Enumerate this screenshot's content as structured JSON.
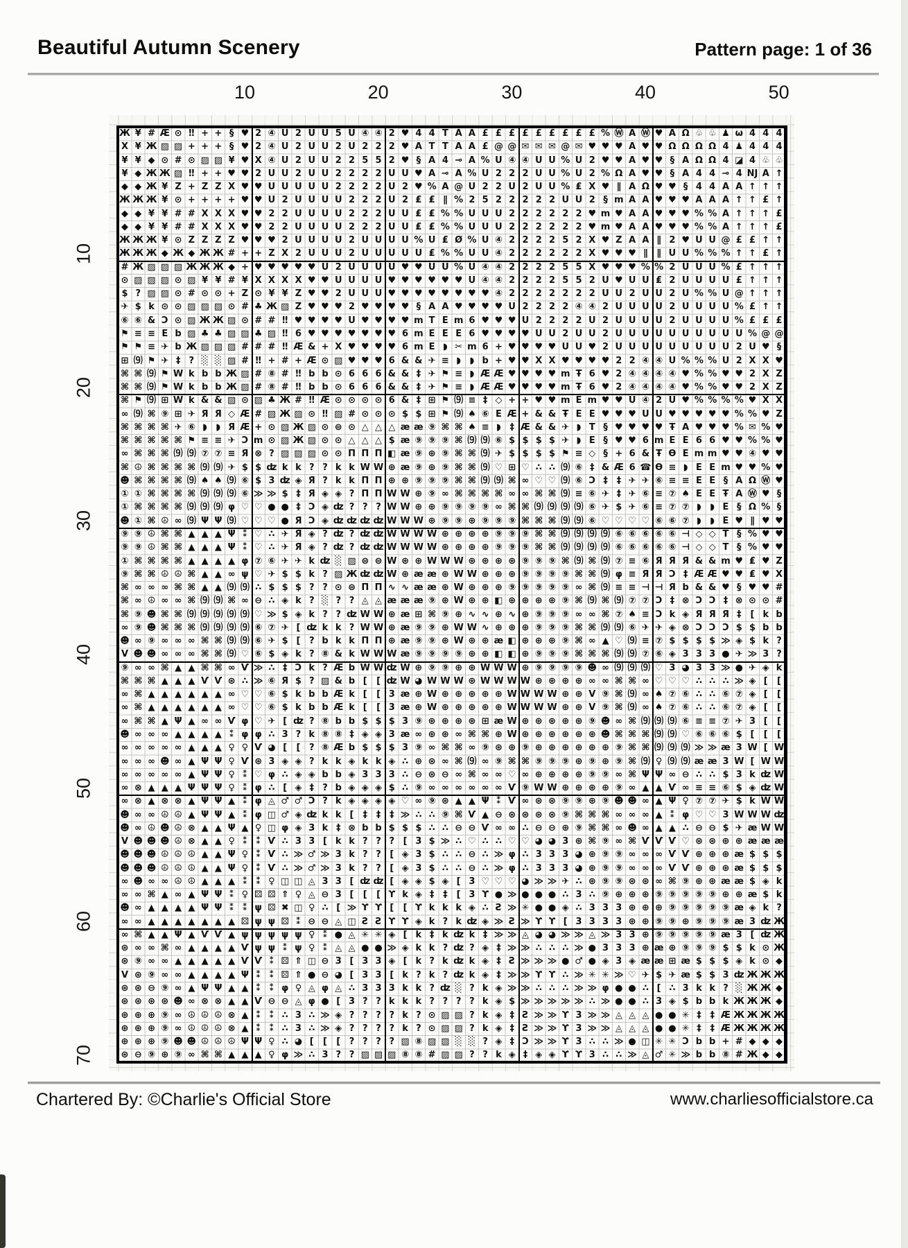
{
  "header": {
    "title": "Beautiful Autumn Scenery",
    "page_label": "Pattern page: 1 of 36"
  },
  "footer": {
    "chartered_by": "Chartered By: ©Charlie's Official Store",
    "website": "www.charliesofficialstore.ca"
  },
  "axes": {
    "column_labels": [
      10,
      20,
      30,
      40,
      50
    ],
    "row_labels": [
      10,
      20,
      30,
      40,
      50,
      60,
      70
    ]
  },
  "grid": {
    "columns": 50,
    "rows": 70,
    "rows_data": [
      "Ж¥#Æ⊙‼++§♥2④U2UU5U④④2♥44TAA£££££££££%ⓌAⓌ♥AΩ♧♧♟ω444",
      "X¥Ж▨▨+++§♥2④U2UU2U222♥ATTAA£@@✉✉✉@✉♥♥♥A♥♥ΩΩΩΩ4♟444",
      "¥¥◆⊙#⊙▨▨¥♥X④U2UU22552♥§A4⊸A%U④④UU%U2♥♥A♥♥§AΩΩ4◪4♧♧",
      "¥◆ЖЖ▨‼++♥♥2UU2UU2222UU♥A⊸A%U222UU%U2%ΩA♥♥§A44⊸4ǊA↑",
      "◆◆Ж¥Z+ZZX♥♥UUUUU2222U2♥%A@U22U2UU%₤X♥∥AΩ♥♥§44AA↑↑↑",
      "ЖЖЖ¥⊙++++♥♥U2UUUU222U2₤₤∥%2522222UU2§mAA♥♥♥AAA↑↑£↑",
      "◆◆¥¥##XXX♥♥22UUUU222UU₤₤%%UUU222222♥m♥AA♥♥♥%%A↑↑↑£",
      "◆◆¥¥##XXX♥♥22UUUU222UU₤₤%%UUU222222♥m♥AA♥♥♥%%A↑↑↑£",
      "ЖЖЖ¥⊙ZZZZ♥♥♥2UUUU2UUUU%U₤Ø%U④222252X♥ZAA∥2♥UU@££↑↑",
      "ЖЖЖ◆Ж◆ЖЖ#++ZX2UUU2UUUUU₤%%UU④222222X♥♥♥∥∥UU%%%↑↑£↑",
      "#Ж▨▨▨ЖЖЖ◆+♥♥♥♥♥U2UUUU♥♥UU%U④④222255X♥♥♥%%2UUU%£↑↑↑",
      "⊙▨▨▨⊙▨¥¥#¥XXXX♥♥UUUU♥♥♥♥♥♥U④④2222552U♥UU₤2UUUU£↑↑↑",
      "$?▨▨⊙#⊙⊙+Z⊙¥¥Z♥♥2UUU♥♥♥♥♥♥♥♥④2222222UU2UU2U%%U@↑↑↑",
      "✈$k⊙⊙▨▨▨⊙#♣Ж▨Z♥♥♥2♥♥♥♥§AA♥♥♥♥U2222④④2UUUU2UUUU%£↑↑",
      "⑥⑥&Ɔ⊙▨ЖЖ▨⊙##‼♥♥♥♥U♥♥♥♥mTEm6♥♥♥U2222U2UUUU2UUUU%£££",
      "⚑≡≡Eb▨♣♣▨▨♣▨‼6♥♥♥♥♥♥♥6mEEE6♥♥♥♥UU2UU2UUUUUUUUUU%@@",
      "⚑⚑≡✈bЖ▨▨▨###‼Æ&+X♥♥♥♥6mE◗✂m6+♥♥♥♥UU♥2UUUUUUUUU2U♥§",
      "⊞⑼⚑✈‡?░░▨#‼+#+Æ⊙▨♥♥♥6&&✈≡◗◗b+♥♥XX♥♥♥♥22④④U%%%U2XX♥",
      "⌘⌘⑼⚑WkbbЖ▨#⑧#‼bb⊙666&&‡✈⚑≡◗ÆÆ♥♥♥♥mŦ6♥2④④④④♥%%♥♥2XZ",
      "⌘⌘⑼⚑WkbbЖ▨#⑧#‼bb⊙666&&‡✈⚑≡◗ÆÆ♥♥♥♥mŦ6♥2④④④④♥%%♥♥2XZ",
      "⌘⚑⑼⊞Wk&&▨⊙▨♣Ж#‼Æ⊙⊙⊙⊙6&‡⊞⚑⑼≡‡◇++♥♥mEm♥♥U④2U♥%%%%♥XX",
      "∞⑼⌘⑨⊞✈ЯЯ◇Æ#▨Ж▨⊙‼▨#⊙⊙⊙$$⊞⚑⑼♠⑥EÆ+&&ŦEE♥♥♥UU♥♥♥♥♥%%♥Z",
      "⌘⌘⌘⌘✈⑥◗◗ЯÆ+⊙▨Ж▨⊙⊜⊙△△△ææ⑨⌘⌘♠≡◗‡Æ&&✈◗T§♥♥♥♥ŦA♥♥♥%✉%♥",
      "⌘⌘⌘⌘⌘⚑≡≡✈Ɔm⊙▨Ж▨⊙⊙△△△$æ⑨⑨⑨⌘⑼⑼⑥$$$$✈◗E§♥♥6mEE66♥♥%%♥",
      "∞⌘⌘⌘⑼⑼⑦⑦≡Я⊗?▨▨▨⊙⊙ΠΠΠ◧æ⑨⊕⑨⌘⌘⑼✈$$$$⚑≡◇§+6&ŦƟEmm♥♥④♥♥",
      "⌘☮⌘⌘⌘⌘⑼⑼✈$$ʣkk??kkWW⊕æ⑨⊕⑨⌘⌘⑼♡⊞♡∴∴⑼⑥‡&Æ6☎Ɵ≡◗EEm♥♥%♥",
      "☻⌘⌘⌘⌘⑼♠♠⑼⑥$3ʣ◈Я?kkΠΠ⊕⊕⑨⑨⑨⌘⌘⑼⑼⌘∞♡♡⑼⑥Ɔ‡‡✈✈⑥≡≡EE§AΩⓌ♥",
      "①①⌘⌘⌘⌘⑼⑼⑼⑥≫≫$‡Я◈◈?ΠΠWW⊕⑨∞⌘⌘⌘⌘∞∞⌘⌘⑼≡⑥✈‡✈⑥≡⑦♠EEŦAⓌ♥§",
      "①⌘⌘⌘⌘⑼⑼⑼φ♡♡●●‡Ɔ◈ʣ???WW⊕⊕⑨⑨⑨⑨∞⌘⌘⑼⑼⑼⑼⑥✈$✈⑥≡⑦⑦◗◗E§Ω%§",
      "☻①⌘☮∞⑼ΨΨ⑼♡♡♡●ЯƆ◈ʣʣʣʣWWW⊕⑨⑨⊕⑨⑨⑨⌘⌘⌘⑼⑼⑥♡♡♡♡⑥⑥⑦◗◗E♥∥♥♥",
      "⑨⑨☮⌘⌘▲▲▲Ψ⁑♡∴✈Я◈?ʣ?ʣʣWWWW⊕⊕⊕⊕⑨⑨⑨⌘⌘⑼⑼⑼⑼⑥⑥⑥⑥⑥⊣◇◇T§%♥♥",
      "⑨⑨☮⌘⌘▲▲▲Ψ⁑♡∴✈Я◈?ʣ?ʣʣWWWW⊕⊕⊕⊕⑨⑨⑨⌘⌘⑼⑼⑼⑼⑥⑥⑥⑥⑥⊣◇◇T§%♥♥",
      "①⌘⌘⌘⌘▲▲▲▲φ⑦⑥✈✈kʣ░▨⊜⊜W⊕⊕WWW⊕⊕⊕⊕⑨⑨⑨⌘⑼⌘⑼⑦≡⑥ЯЯЯ&&m♥₤♥Z",
      "⑨⌘⌘☮☮⌘▲▲∞ψ♡✈$$k?▨ЖʣʣW⊕ææ⊕WW⊕⊕⊕⑨⑨⑨⑨⌘⌘⑼φ≡ЯЯƆ‡ÆÆ♥♥₤♥X",
      "⌘∞∞∞⌘⌘▲▲⑼⑼∴$$$??⊙⊜ΠΠ∿∿ææ⊕W⊕⊕⊕⑨⑨⑨⑨⑨∞⌘⑼≡≡⊣⊣Яb&&♥§♥♥#",
      "⌘∞☮∞∞⌘⑼⑼⌘∞⊖∴◈k?░??◬◬æææ⑨⊕W⊕⊕◧⊕⊕⊕⊕⑨⌘⑼⌘⑼⑦⑦Ɔ‡⊗ƆƆ‡⊗⊙⊙#",
      "⌘⑨☻⌘⌘⑼⑼⑼⑼⑼♡≫$◈k??ʣWW⊕æ⊞⌘⑨⊕∿∿⊕∿⊕⑨⑨⑨∞∞⌘⑦♠≡Ɔk◈ЯЯЯ‡[kb",
      "∞⑨☻⌘⌘⌘⑼⑼⑼⑼⑥⑦✈[ʣkk?WW⊕æ⑨⑨⊕WW∿⊕⊕⊕⑨⑨⑨⌘⌘⑼⑼⑥✈✈◈⊗ƆƆƆ$$bb",
      "☻∞⑨∞∞∞⌘⌘⑼⑼⑥✈$[?bkkΠΠ⊕æ⑨⑨⊕W⊕⊕æ◧⊕⊕⊕⑨⌘∞▲♡⑼≡⑦$$$$≫◈$k?",
      "V☻☻∞∞∞⌘⌘⑼♡⑥$◈k?⑧&kWWWæ⑨⑨⑨⑨⊕⊕◧◧⊕⑨⑨⑨⌘⌘⌘⑼⑼⑦⑥◈333●✈≫3?",
      "⑨∞∞⌘▲▲⌘⌘∞Ѵ≫∴‡Ɔk?ÆbWWʣW⊕⑨⑨⊕⊕WWW⊕⑨⑨⑨⑨☻∞⑼⑼⑼♡3◕33≫●✈◈k",
      "⌘⌘⌘▲▲▲ѴѴ⊛∴≫⑥Я$?▨&b[[ʣW◕WWW⊕WWWW⊕⊕⊕⊕∞∞⌘⌘∞♡♡♡∴∴∴≫◈[[",
      "∞⌘▲▲▲▲▲▲∞♡♡⑥$kbbÆk[[3æ⊕W⊕⊕⊕⊕⊕WWWW⊕⊕V⑨⌘⑼∞♠⑦⑥∴∴⑥⑦◈[[",
      "∞⌘▲▲▲▲▲▲∞♡♡⑥$kbbÆk[[3æ⊕W⊕⊕⊕⊕⊕WWWW⊕⊕V⑨⌘⑼∞♠⑦⑥∴∴⑥⑦◈[[",
      "∞⌘⌘▲Ψ▲∞∞Ѵφ♡✈[ʣ?⑧bb$$$3⑨⊕⊕⊕⊕⊞æW⊕⊕⊕⊕⊕⑨☻∞⌘⑼⑼⑼⑥≡≡⑦✈3[[",
      "☻∞∞∞▲▲▲▲⁑φφ∴3?k⑧⑧‡◈◈3æ∞⊕⊕∞⌘⌘⊕W⊕⊕⊕⊕⊕⊕☻⌘⌘⌘⑼⑼♡⑥⑥⑥$[[[",
      "∞∞∞∞∞▲▲▲♀♀Ѵ◕[[?⑧Æb$$$3⑨∞⌘⌘∞⑨⊛⊕⑨⊕⊕⊕⊕⊕⊕⑨⌘⌘⑼⑼⑼≫≫æ3W[W",
      "∞∞∞☻∞▲ΨΨ♀Ѵ⊛3◈◈?kk◈kk◈∴⊕⊛∞⌘⑼∞⑨⌘⌘⑨⑨⑨⊕⑨⊕⑨⌘⑼♀⑼⑼ææ3W[WW",
      "∞∞∞∞∞▲ΨΨ♀⁑♡φ∴◈◈bb◈333∴⊖⊛⊖∞⌘∞∞♡∞⊕⊕⊕⊕⑨⑨∞⌘ΨΨ∞⊖∴∴$3kʣW",
      "∞⊗▲▲▲ΨΨΨ♀⁑φ∴[◈‡?b◈◈◈$∴⑨∞∞∞∞∞∞Ѵ⑨WW⊕⊕⊕⊕⑨∞▲▲Ѵ∞≡≡⑥$◈ʣW",
      "∞⊗▲⊗⊗▲ΨΨ▲⁑φ◬♂♂Ɔ?k◈◈◈◈♡∞⑨⊛▲▲Ψ⁑Ѵ∞⊛⊛⑨⑨⊕⑨☻☻∞▲Ψ♀⑦⑦✈$kWW",
      "☻∞∞☮☮▲ΨΨ▲⁑φ◫♂◈ʣkk[‡‡‡≫∴∴⑨⌘Ѵ▲⊖⊛⊛⊛⊛⑨⌘⌘⌘∞∞∞▲⁑φ♡♡3WWWʣ",
      "☻∞☮☻☮⊗▲▲Ψ▲♀◫φ◈3k‡⊗bb$$$∴∴⊖⊖Ѵ∞∞∴⊖⊖⊕⑨⌘⌘∞☻∞▲▲∴⊖⊖$✈æWW",
      "V☻☻☻☮⊗▲▲♀⁑⁑Ѵ∴33[kk???[3$≫∴♡∴∴♡♡◕◕3⊕⌘⑨∞⌘ѴѴѴ♡⊛⊛⊕⊕æææ",
      "☻☻☻☮☮☮▲▲Ψ♀⁑Ѵ∴≫♂≫3k??[◈3$∴∴⊖∴≫φ∴333◕⊕⑨⑨∞∞∞ѴѴ⊕⊕⊕æ$$$",
      "☻☻☻☮☮☮▲▲Ψ♀⁑Ѵ∴≫♂≫3k??[◈3$∴∴⊖∴≫φ∴333◕⊕⑨⑨∞∞∞ѴѴ⊕⊕⊕æ$$$",
      "∞☻∞∞☮☮▲▲▲⁑⁑♀◫◫◬33[ʣʣ[◈◈$◈[3♡♡♡◕≫≫✈∴⊕⑨⑨⊛⊛∞⌘⑨⊕⊕ææ$◈k",
      "∞∞⌘▲∞▲ΨΨ⁑♀⚄⚄⇑♀◬⊖3[[[ϒk◈‡‡[3ϒ●≫●●●∴3∴⑨⊕⊕⊕⑨⑨⑨⑨⑨⊕⊕æ$k",
      "☻∞▲▲▲▲ΨΨ⁑⁑ψ⚄✖◫♀∴[≫ϒϒ[[ϒkkk◈∴Ƨ≫✳●●◈∴333⊕⊕⊕⑨⑨⑨⑨⑨æ◈k?",
      "∞∞▲▲▲▲▲▲▲⚄ψψ⚄⁑⊖⊖◬◫ƧƧϒϒ◈k?kʣ◈≫Ƨ≫ϒϒ[3333⊕⊕⑨⑨⊕⑨⑨⑨æ3ʣЖ",
      "∞⌘▲▲Ψ▲ѴѴ▲ψψψψψ♀⁑●◬✳✳◈[k‡kʣk‡≫≫◬◕◕≫≫◬≫33⊕⑨⑨⑨⑨⑨æ3[ʣЖ",
      "⊛∞∞⌘∞▲▲▲▲Ѵψψ⁑ψ♀⁑◬◬●●≫◈kk?ʣ?◈‡≫≫∴∴∴≫●333⊕æ⊕⑨⑨⑨$$k⊙Ж",
      "⊛⑨∞∞▲▲▲▲▲ѴѴ⁑⚄⇑◫⊖3[33◈[k?kʣk◈‡Ƨ≫≫≫●♂●◈3◈ææ⊞æ$$$◈k⊙◆",
      "V⊛⑨∞∞▲▲▲▲Ψ⁑⁑⚄⇑●⊖◕[33[k?k?ʣk◈‡≫≫ϒϒ∴≫✳✳≫♡✈$✈æ$$3ʣЖЖЖ",
      "⊛⊛⊖⑨∞▲ΨΨ▲▲⁑⁑φ♀◬φ◬∴333kk?ʣ░?k◈≫≫∴∴∴≫≫φ●●∴[∴3kk?░ЖЖ◆",
      "⊛⊛⊛⊛☻∞⊗⊗▲▲Ѵ⊖⊖◬φ●[3??kkk????k◈$≫≫≫≫≫∴≫●●∴3◈$bbkЖЖЖ◆",
      "⊕⊕⊕⑨∞☮☮☮⊗▲⁑⁑∴3∴≫◈????k?⊙▨▨?k◈‡Ƨ≫≫ϒ3≫≫◬◬◬●●✳‡‡ÆЖЖЖЖ",
      "⊕⊕⊕⑨∞☮☮☮⊗▲⁑⁑∴3∴≫◈????k?⊙▨▨?k◈‡Ƨ≫≫ϒ3≫≫◬◬◬●●✳‡‡ÆЖЖЖЖ",
      "⊕⊕⊕⑨☻☻☮☮☮ΨΨ♀∴◕[[[????▨⑧▨▨░░?◈‡Ɔ≫≫ϒ3∴∴≫●◫✳✳Ɔbb+#◆◆◆",
      "⊛⊖⑨⊕⑨∞⌘⌘▲▲▲♀φ≫∴3??▨▨▨⑧⑧#▨▨??k◈‡◈◈ϒϒ3∴∴≫◬♂✳≫bb⑧#Ж◆◆"
    ]
  }
}
